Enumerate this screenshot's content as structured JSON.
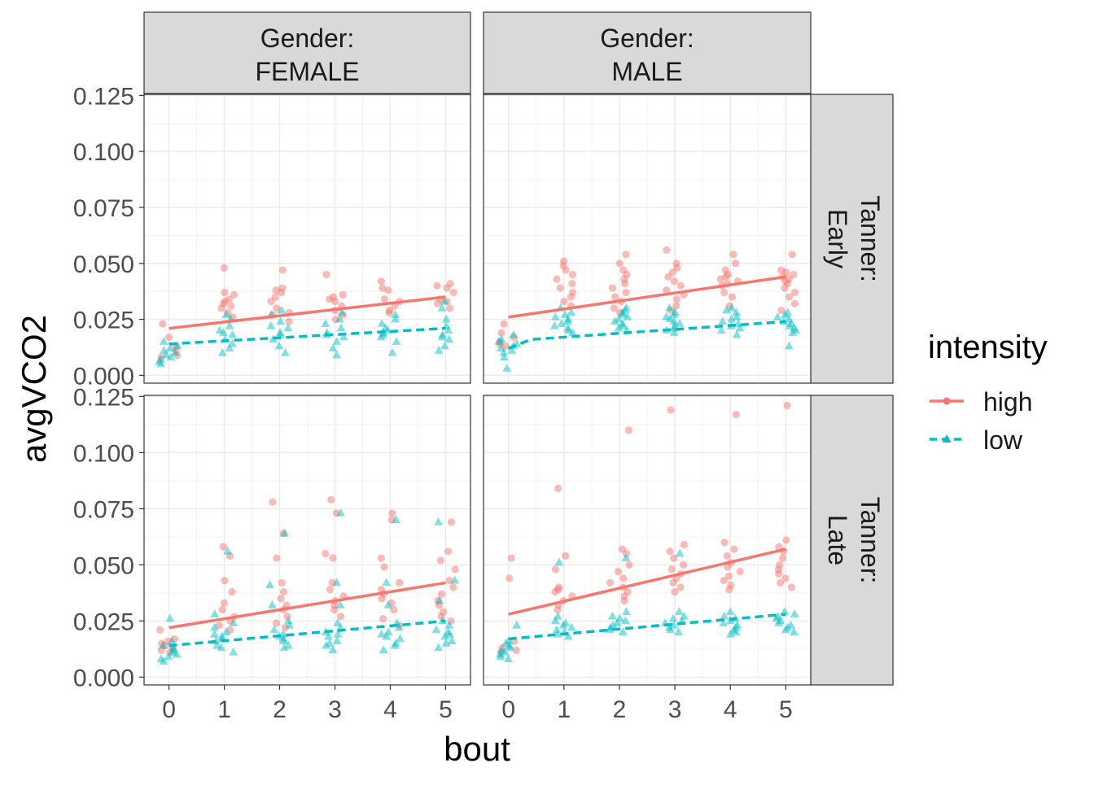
{
  "chart_data": {
    "type": "scatter",
    "title": "",
    "xlabel": "bout",
    "ylabel": "avgVCO2",
    "xlim": [
      -0.45,
      5.45
    ],
    "ylim": [
      -0.0035,
      0.1255
    ],
    "x_ticks": [
      0,
      1,
      2,
      3,
      4,
      5
    ],
    "y_ticks": [
      0.0,
      0.025,
      0.05,
      0.075,
      0.1,
      0.125
    ],
    "y_tick_labels": [
      "0.000",
      "0.025",
      "0.050",
      "0.075",
      "0.100",
      "0.125"
    ],
    "x_tick_labels": [
      "0",
      "1",
      "2",
      "3",
      "4",
      "5"
    ],
    "grid": true,
    "facet_cols": [
      {
        "label_line1": "Gender:",
        "label_line2": "FEMALE"
      },
      {
        "label_line1": "Gender:",
        "label_line2": "MALE"
      }
    ],
    "facet_rows": [
      {
        "label_line1": "Tanner:",
        "label_line2": "Early"
      },
      {
        "label_line1": "Tanner:",
        "label_line2": "Late"
      }
    ],
    "legend": {
      "title": "intensity",
      "position": "right",
      "entries": [
        {
          "name": "high",
          "color": "#F8766D",
          "line": "solid",
          "marker": "circle"
        },
        {
          "name": "low",
          "color": "#00BFC4",
          "line": "dashed",
          "marker": "triangle"
        }
      ]
    },
    "panels": [
      {
        "row": 0,
        "col": 0,
        "high": {
          "trend": {
            "x": [
              0,
              5
            ],
            "y": [
              0.021,
              0.035
            ]
          },
          "points": {
            "0": [
              0.023,
              0.017,
              0.013,
              0.011,
              0.009,
              0.008
            ],
            "1": [
              0.048,
              0.037,
              0.036,
              0.034,
              0.033,
              0.032,
              0.031,
              0.03,
              0.028,
              0.026
            ],
            "2": [
              0.047,
              0.039,
              0.038,
              0.037,
              0.035,
              0.033,
              0.03,
              0.028,
              0.027,
              0.024
            ],
            "3": [
              0.045,
              0.036,
              0.035,
              0.034,
              0.033,
              0.031,
              0.029,
              0.027,
              0.025
            ],
            "4": [
              0.042,
              0.039,
              0.038,
              0.034,
              0.033,
              0.031,
              0.029,
              0.028
            ],
            "5": [
              0.041,
              0.04,
              0.039,
              0.037,
              0.034,
              0.033,
              0.032,
              0.03
            ]
          }
        },
        "low": {
          "trend": {
            "x": [
              0,
              5
            ],
            "y": [
              0.014,
              0.021
            ]
          },
          "points": {
            "0": [
              0.015,
              0.013,
              0.012,
              0.011,
              0.01,
              0.009,
              0.008,
              0.007,
              0.006,
              0.005
            ],
            "1": [
              0.027,
              0.025,
              0.022,
              0.02,
              0.019,
              0.018,
              0.016,
              0.014,
              0.012,
              0.01
            ],
            "2": [
              0.029,
              0.027,
              0.024,
              0.022,
              0.021,
              0.019,
              0.018,
              0.016,
              0.013,
              0.01
            ],
            "3": [
              0.028,
              0.025,
              0.023,
              0.021,
              0.019,
              0.018,
              0.017,
              0.015,
              0.012,
              0.009
            ],
            "4": [
              0.027,
              0.025,
              0.023,
              0.021,
              0.02,
              0.019,
              0.018,
              0.017,
              0.015,
              0.01
            ],
            "5": [
              0.033,
              0.03,
              0.025,
              0.022,
              0.02,
              0.018,
              0.017,
              0.016,
              0.013,
              0.011
            ]
          }
        }
      },
      {
        "row": 0,
        "col": 1,
        "high": {
          "trend": {
            "x": [
              0,
              5
            ],
            "y": [
              0.026,
              0.044
            ]
          },
          "points": {
            "0": [
              0.023,
              0.019,
              0.017,
              0.015,
              0.014,
              0.013
            ],
            "1": [
              0.051,
              0.049,
              0.047,
              0.045,
              0.043,
              0.041,
              0.039,
              0.037,
              0.035,
              0.033,
              0.031
            ],
            "2": [
              0.054,
              0.05,
              0.047,
              0.045,
              0.043,
              0.041,
              0.039,
              0.037,
              0.035,
              0.033,
              0.03,
              0.028
            ],
            "3": [
              0.056,
              0.05,
              0.048,
              0.046,
              0.044,
              0.042,
              0.04,
              0.038,
              0.036,
              0.034,
              0.031,
              0.029
            ],
            "4": [
              0.054,
              0.05,
              0.047,
              0.045,
              0.044,
              0.043,
              0.042,
              0.041,
              0.04,
              0.037,
              0.035,
              0.031
            ],
            "5": [
              0.054,
              0.047,
              0.046,
              0.045,
              0.044,
              0.043,
              0.042,
              0.041,
              0.039,
              0.037,
              0.035,
              0.032,
              0.029
            ]
          }
        },
        "low": {
          "trend": {
            "x": [
              0,
              0.4,
              5
            ],
            "y": [
              0.012,
              0.016,
              0.024
            ]
          },
          "points": {
            "0": [
              0.018,
              0.016,
              0.015,
              0.014,
              0.013,
              0.012,
              0.011,
              0.01,
              0.008,
              0.003
            ],
            "1": [
              0.03,
              0.028,
              0.027,
              0.026,
              0.025,
              0.024,
              0.023,
              0.022,
              0.021,
              0.02,
              0.019
            ],
            "2": [
              0.03,
              0.029,
              0.028,
              0.027,
              0.026,
              0.025,
              0.024,
              0.023,
              0.022,
              0.021,
              0.02
            ],
            "3": [
              0.03,
              0.028,
              0.027,
              0.026,
              0.025,
              0.024,
              0.023,
              0.022,
              0.021,
              0.02,
              0.019
            ],
            "4": [
              0.03,
              0.029,
              0.028,
              0.026,
              0.025,
              0.024,
              0.023,
              0.022,
              0.021,
              0.02,
              0.018
            ],
            "5": [
              0.028,
              0.027,
              0.026,
              0.025,
              0.024,
              0.023,
              0.022,
              0.021,
              0.02,
              0.019,
              0.013
            ]
          }
        }
      },
      {
        "row": 1,
        "col": 0,
        "high": {
          "trend": {
            "x": [
              0,
              5
            ],
            "y": [
              0.022,
              0.042
            ]
          },
          "points": {
            "0": [
              0.021,
              0.017,
              0.016,
              0.015,
              0.014,
              0.013,
              0.012,
              0.011
            ],
            "1": [
              0.058,
              0.054,
              0.043,
              0.038,
              0.033,
              0.03,
              0.027,
              0.025,
              0.023,
              0.021
            ],
            "2": [
              0.078,
              0.064,
              0.053,
              0.042,
              0.038,
              0.035,
              0.032,
              0.03,
              0.027,
              0.024,
              0.022
            ],
            "3": [
              0.079,
              0.073,
              0.055,
              0.053,
              0.042,
              0.039,
              0.036,
              0.034,
              0.032,
              0.03,
              0.027
            ],
            "4": [
              0.073,
              0.07,
              0.053,
              0.049,
              0.042,
              0.039,
              0.037,
              0.035,
              0.033,
              0.03,
              0.026,
              0.023
            ],
            "5": [
              0.069,
              0.056,
              0.052,
              0.048,
              0.043,
              0.04,
              0.037,
              0.034,
              0.032,
              0.029,
              0.027,
              0.025
            ]
          }
        },
        "low": {
          "trend": {
            "x": [
              0,
              5
            ],
            "y": [
              0.014,
              0.025
            ]
          },
          "points": {
            "0": [
              0.026,
              0.016,
              0.014,
              0.013,
              0.012,
              0.011,
              0.01,
              0.009,
              0.008,
              0.007
            ],
            "1": [
              0.056,
              0.028,
              0.024,
              0.022,
              0.02,
              0.019,
              0.018,
              0.017,
              0.016,
              0.014,
              0.013,
              0.011
            ],
            "2": [
              0.064,
              0.041,
              0.032,
              0.025,
              0.023,
              0.021,
              0.019,
              0.018,
              0.017,
              0.016,
              0.014,
              0.013
            ],
            "3": [
              0.073,
              0.042,
              0.032,
              0.024,
              0.022,
              0.02,
              0.019,
              0.018,
              0.016,
              0.015,
              0.014,
              0.012
            ],
            "4": [
              0.07,
              0.042,
              0.032,
              0.024,
              0.022,
              0.02,
              0.019,
              0.018,
              0.017,
              0.015,
              0.014,
              0.012
            ],
            "5": [
              0.069,
              0.043,
              0.034,
              0.025,
              0.023,
              0.021,
              0.02,
              0.019,
              0.018,
              0.016,
              0.015,
              0.013
            ]
          }
        }
      },
      {
        "row": 1,
        "col": 1,
        "high": {
          "trend": {
            "x": [
              0,
              5
            ],
            "y": [
              0.028,
              0.057
            ]
          },
          "points": {
            "0": [
              0.053,
              0.044,
              0.016,
              0.013,
              0.012,
              0.011
            ],
            "1": [
              0.084,
              0.054,
              0.048,
              0.04,
              0.039,
              0.038,
              0.036,
              0.034,
              0.032,
              0.03
            ],
            "2": [
              0.11,
              0.057,
              0.055,
              0.05,
              0.047,
              0.044,
              0.042,
              0.04,
              0.038,
              0.036,
              0.034
            ],
            "3": [
              0.119,
              0.059,
              0.056,
              0.053,
              0.05,
              0.048,
              0.046,
              0.044,
              0.042,
              0.04,
              0.038
            ],
            "4": [
              0.117,
              0.06,
              0.057,
              0.054,
              0.051,
              0.049,
              0.047,
              0.045,
              0.043,
              0.041,
              0.039
            ],
            "5": [
              0.121,
              0.061,
              0.058,
              0.056,
              0.053,
              0.05,
              0.048,
              0.046,
              0.044,
              0.042,
              0.04
            ]
          }
        },
        "low": {
          "trend": {
            "x": [
              0,
              5
            ],
            "y": [
              0.017,
              0.028
            ]
          },
          "points": {
            "0": [
              0.023,
              0.016,
              0.015,
              0.014,
              0.013,
              0.012,
              0.011,
              0.01,
              0.009,
              0.008
            ],
            "1": [
              0.051,
              0.027,
              0.025,
              0.024,
              0.023,
              0.022,
              0.021,
              0.02,
              0.019,
              0.018
            ],
            "2": [
              0.053,
              0.029,
              0.027,
              0.026,
              0.025,
              0.024,
              0.023,
              0.022,
              0.021,
              0.02
            ],
            "3": [
              0.055,
              0.029,
              0.027,
              0.026,
              0.025,
              0.024,
              0.023,
              0.022,
              0.021,
              0.02
            ],
            "4": [
              0.029,
              0.027,
              0.026,
              0.025,
              0.024,
              0.023,
              0.022,
              0.021,
              0.02,
              0.019
            ],
            "5": [
              0.029,
              0.028,
              0.027,
              0.026,
              0.025,
              0.024,
              0.023,
              0.022,
              0.021,
              0.02
            ]
          }
        }
      }
    ]
  }
}
